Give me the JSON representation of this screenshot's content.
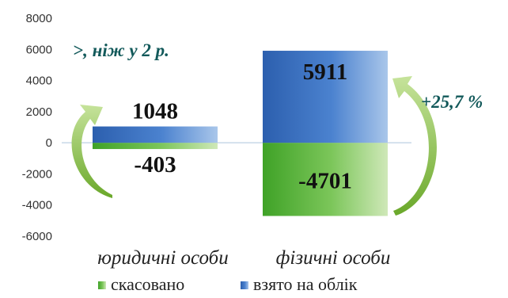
{
  "chart_data": {
    "type": "bar",
    "stacked": true,
    "categories": [
      "юридичні особи",
      "фізичні особи"
    ],
    "series": [
      {
        "name": "скасовано",
        "values": [
          -403,
          -4701
        ],
        "color": "#5db83a"
      },
      {
        "name": "взято на облік",
        "values": [
          1048,
          5911
        ],
        "color": "#3a72c4"
      }
    ],
    "ylim": [
      -6000,
      8000
    ],
    "yticks": [
      8000,
      6000,
      4000,
      2000,
      0,
      -2000,
      -4000,
      -6000
    ],
    "legend": {
      "placement": "bottom"
    },
    "grid": false,
    "annotations": [
      {
        "text": ">, ніж у 2 р.",
        "category": "юридичні особи",
        "arrow_color": "#8dc63f"
      },
      {
        "text": "+25,7 %",
        "category": "фізичні особи",
        "arrow_color": "#8dc63f"
      }
    ]
  }
}
